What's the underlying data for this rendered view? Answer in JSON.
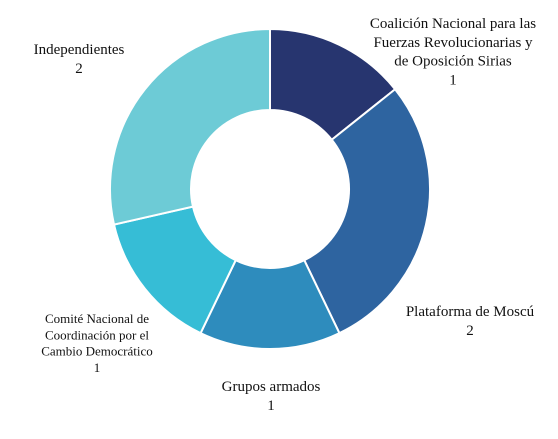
{
  "chart_data": {
    "type": "pie",
    "variant": "donut",
    "title": "",
    "legend": "none",
    "slices": [
      {
        "label_lines": [
          "Coalición Nacional para las",
          "Fuerzas Revolucionarias y",
          "de Oposición Sirias"
        ],
        "value": 1,
        "value_label": "1",
        "color": "#27356f"
      },
      {
        "label_lines": [
          "Plataforma de Moscú"
        ],
        "value": 2,
        "value_label": "2",
        "color": "#2e64a0"
      },
      {
        "label_lines": [
          "Grupos armados"
        ],
        "value": 1,
        "value_label": "1",
        "color": "#2e8cbd"
      },
      {
        "label_lines": [
          "Comité Nacional de",
          "Coordinación por el",
          "Cambio Democrático"
        ],
        "value": 1,
        "value_label": "1",
        "color": "#36bdd6"
      },
      {
        "label_lines": [
          "Independientes"
        ],
        "value": 2,
        "value_label": "2",
        "color": "#6dcbd6"
      }
    ]
  }
}
